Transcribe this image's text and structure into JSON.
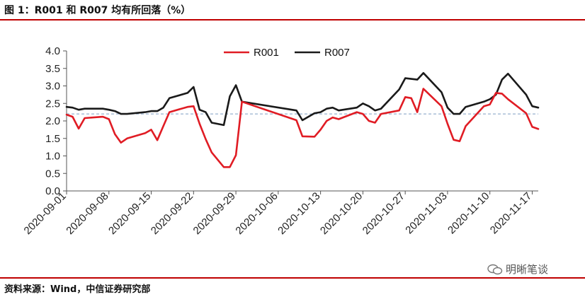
{
  "title": "图 1：R001 和 R007 均有所回落（%）",
  "source": "资料来源：Wind，中信证券研究部",
  "watermark": "明晰笔谈",
  "colors": {
    "r001": "#e01c24",
    "r007": "#1a1a1a",
    "reference": "#7f9fc4",
    "rule": "#c00000"
  },
  "chart_data": {
    "type": "line",
    "title": "图 1：R001 和 R007 均有所回落（%）",
    "xlabel": "",
    "ylabel": "",
    "ylim": [
      0.0,
      4.0
    ],
    "y_ticks": [
      "0.0",
      "0.5",
      "1.0",
      "1.5",
      "2.0",
      "2.5",
      "3.0",
      "3.5",
      "4.0"
    ],
    "x_tick_labels": [
      "2020-09-01",
      "2020-09-08",
      "2020-09-15",
      "2020-09-22",
      "2020-09-29",
      "2020-10-06",
      "2020-10-13",
      "2020-10-20",
      "2020-10-27",
      "2020-11-03",
      "2020-11-10",
      "2020-11-17"
    ],
    "legend": {
      "position": "top-center",
      "entries": [
        "R001",
        "R007"
      ]
    },
    "grid": false,
    "reference_line": {
      "y": 2.2,
      "style": "dashed"
    },
    "x": [
      "2020-09-01",
      "2020-09-02",
      "2020-09-03",
      "2020-09-04",
      "2020-09-07",
      "2020-09-08",
      "2020-09-09",
      "2020-09-10",
      "2020-09-11",
      "2020-09-14",
      "2020-09-15",
      "2020-09-16",
      "2020-09-17",
      "2020-09-18",
      "2020-09-21",
      "2020-09-22",
      "2020-09-23",
      "2020-09-24",
      "2020-09-25",
      "2020-09-27",
      "2020-09-28",
      "2020-09-29",
      "2020-09-30",
      "2020-10-09",
      "2020-10-10",
      "2020-10-12",
      "2020-10-13",
      "2020-10-14",
      "2020-10-15",
      "2020-10-16",
      "2020-10-19",
      "2020-10-20",
      "2020-10-21",
      "2020-10-22",
      "2020-10-23",
      "2020-10-26",
      "2020-10-27",
      "2020-10-28",
      "2020-10-29",
      "2020-10-30",
      "2020-11-02",
      "2020-11-03",
      "2020-11-04",
      "2020-11-05",
      "2020-11-06",
      "2020-11-09",
      "2020-11-10",
      "2020-11-11",
      "2020-11-12",
      "2020-11-13",
      "2020-11-16",
      "2020-11-17",
      "2020-11-18"
    ],
    "series": [
      {
        "name": "R001",
        "color": "#e01c24",
        "values": [
          2.18,
          2.12,
          1.78,
          2.08,
          2.12,
          2.05,
          1.62,
          1.38,
          1.5,
          1.65,
          1.75,
          1.45,
          1.85,
          2.25,
          2.4,
          2.42,
          1.92,
          1.48,
          1.1,
          0.68,
          0.68,
          1.02,
          2.55,
          2.02,
          1.56,
          1.55,
          1.75,
          2.0,
          2.1,
          2.05,
          2.25,
          2.2,
          2.0,
          1.95,
          2.2,
          2.3,
          2.68,
          2.65,
          2.25,
          2.92,
          2.42,
          1.92,
          1.46,
          1.42,
          1.85,
          2.42,
          2.47,
          2.8,
          2.78,
          2.62,
          2.22,
          1.83,
          1.77
        ]
      },
      {
        "name": "R007",
        "color": "#1a1a1a",
        "values": [
          2.4,
          2.38,
          2.32,
          2.35,
          2.35,
          2.32,
          2.28,
          2.2,
          2.2,
          2.25,
          2.28,
          2.28,
          2.38,
          2.65,
          2.8,
          2.97,
          2.32,
          2.25,
          1.95,
          1.88,
          2.7,
          3.02,
          2.55,
          2.3,
          2.02,
          2.22,
          2.25,
          2.35,
          2.38,
          2.3,
          2.38,
          2.5,
          2.42,
          2.3,
          2.35,
          2.9,
          3.22,
          3.2,
          3.18,
          3.37,
          2.82,
          2.38,
          2.2,
          2.2,
          2.4,
          2.55,
          2.62,
          2.75,
          3.18,
          3.35,
          2.75,
          2.42,
          2.38
        ]
      }
    ]
  }
}
